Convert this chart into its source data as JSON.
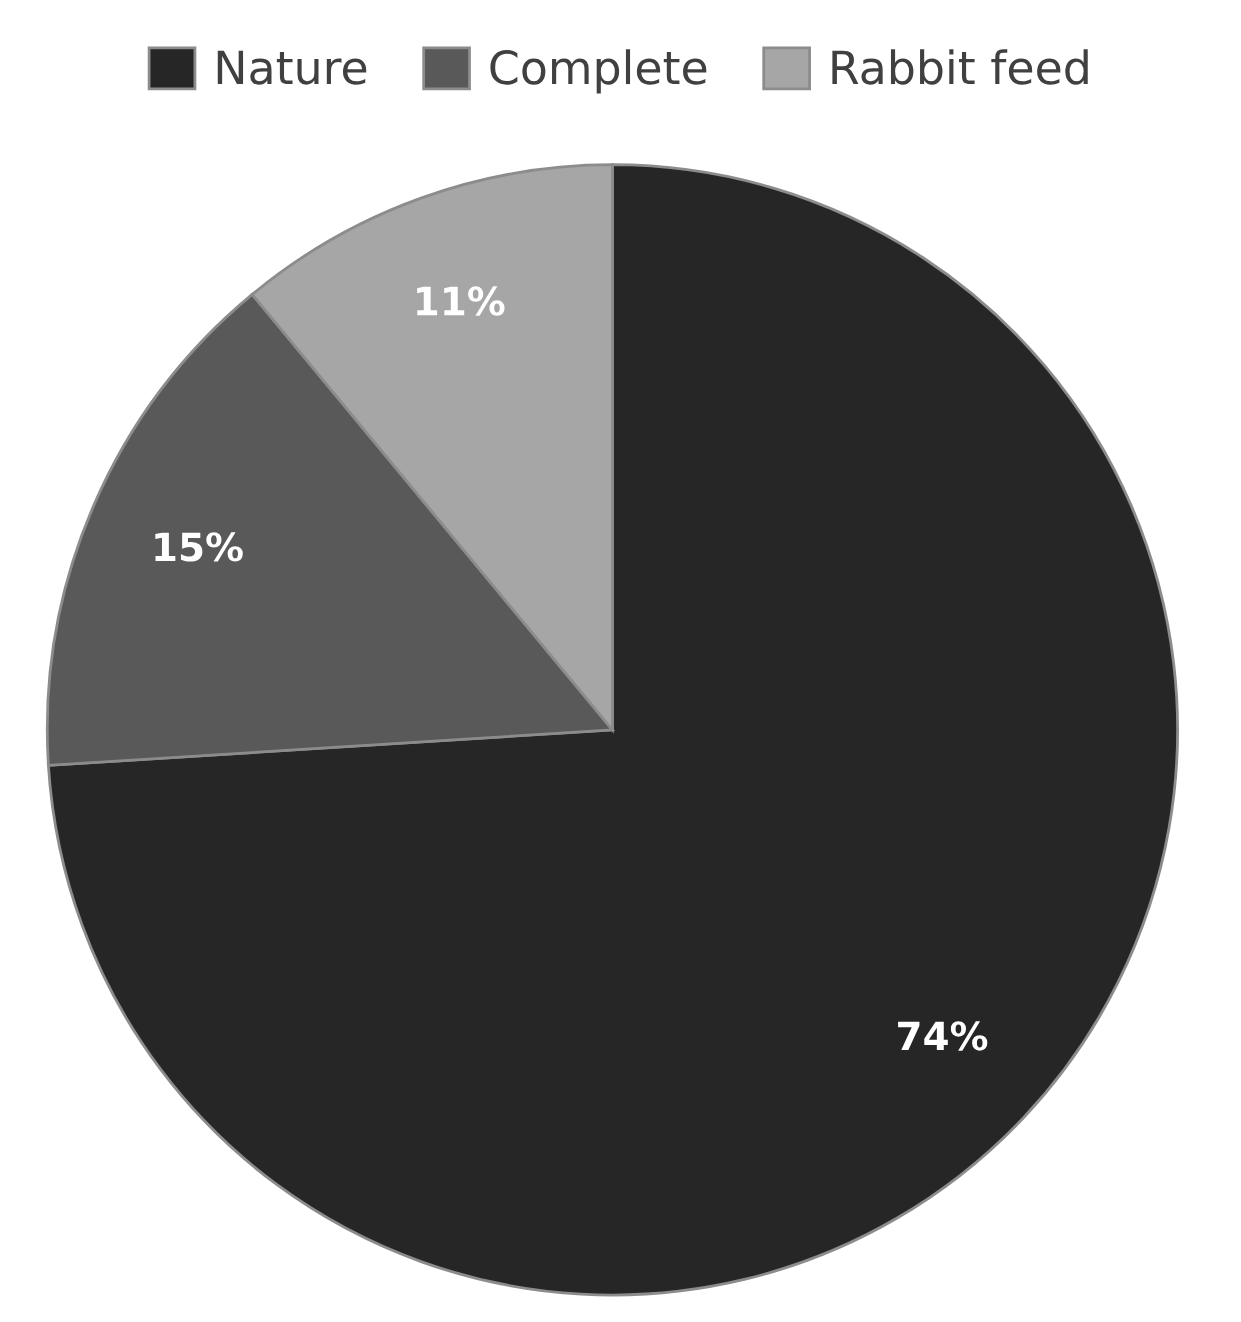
{
  "chart_data": {
    "type": "pie",
    "categories": [
      "Nature",
      "Complete",
      "Rabbit feed"
    ],
    "values": [
      74,
      15,
      11
    ],
    "colors": [
      "#262626",
      "#595959",
      "#a6a6a6"
    ],
    "value_labels": [
      "74%",
      "15%",
      "11%"
    ],
    "legend": "top"
  }
}
